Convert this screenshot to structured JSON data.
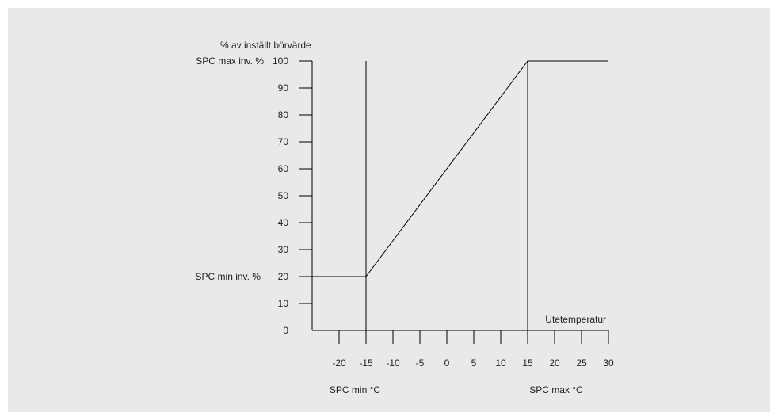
{
  "chart_data": {
    "type": "line",
    "ylabel": "% av inställt börvärde",
    "xlabel": "Utetemperatur",
    "y_ticks": [
      "0",
      "10",
      "20",
      "30",
      "40",
      "50",
      "60",
      "70",
      "80",
      "90",
      "100"
    ],
    "x_ticks": [
      "-20",
      "-15",
      "-10",
      "-5",
      "0",
      "5",
      "10",
      "15",
      "20",
      "25",
      "30"
    ],
    "ylim": [
      0,
      100
    ],
    "xlim": [
      -25,
      30
    ],
    "series": [
      {
        "x": [
          -25,
          -15,
          15,
          30
        ],
        "y": [
          20,
          20,
          100,
          100
        ]
      }
    ],
    "vlines": [
      -15,
      15
    ],
    "annotations": {
      "spc_max_inv": {
        "text": "SPC max inv. %",
        "y": 100
      },
      "spc_min_inv": {
        "text": "SPC min inv. %",
        "y": 20
      },
      "spc_min_c": {
        "text": "SPC min °C",
        "x": -15
      },
      "spc_max_c": {
        "text": "SPC max °C",
        "x": 15
      }
    },
    "grid": false,
    "line_color": "#000000"
  }
}
